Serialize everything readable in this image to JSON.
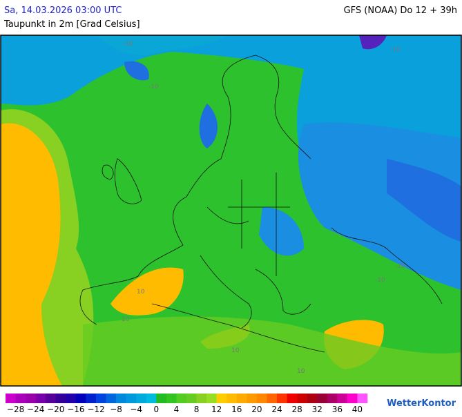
{
  "header": {
    "datetime": "Sa, 14.03.2026 03:00 UTC",
    "parameter": "Taupunkt in 2m [Grad Celsius]",
    "model": "GFS (NOAA) Do 12 + 39h"
  },
  "map": {
    "contour_labels": [
      "-10",
      "-10",
      "-10",
      "-10",
      "-10",
      "10",
      "10",
      "10",
      "10"
    ]
  },
  "legend": {
    "labels": [
      "−28",
      "−24",
      "−20",
      "−16",
      "−12",
      "−8",
      "−4",
      "0",
      "4",
      "8",
      "12",
      "16",
      "20",
      "24",
      "28",
      "32",
      "36",
      "40"
    ],
    "colors": [
      "#cc00cc",
      "#aa00bb",
      "#9900aa",
      "#7700aa",
      "#550099",
      "#330099",
      "#2200aa",
      "#0000bb",
      "#0022cc",
      "#0044dd",
      "#0066dd",
      "#0088dd",
      "#0099dd",
      "#00aadd",
      "#00bbdd",
      "#22bb22",
      "#33c422",
      "#55cc22",
      "#66cc22",
      "#88d022",
      "#99dd22",
      "#ffcc00",
      "#ffbb00",
      "#ffaa00",
      "#ff9900",
      "#ff8800",
      "#ff6600",
      "#ff3300",
      "#ee0000",
      "#cc0000",
      "#aa0011",
      "#990033",
      "#aa0066",
      "#cc0099",
      "#ff00cc",
      "#ff55ff"
    ]
  },
  "logo": "WetterKontor"
}
